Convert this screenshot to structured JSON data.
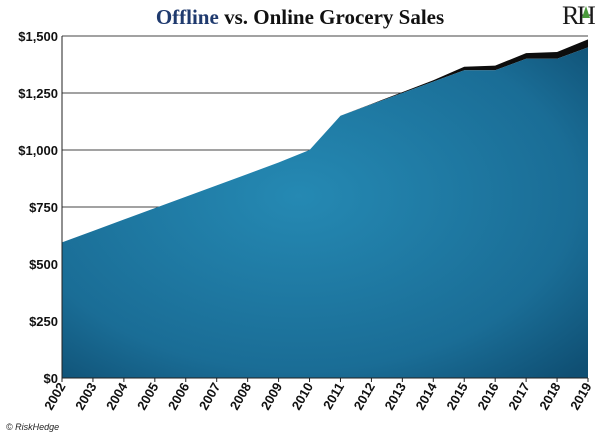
{
  "chart_data": {
    "type": "area",
    "title_part1": "Offline",
    "title_part2": " vs. Online Grocery Sales",
    "x": [
      "2002",
      "2003",
      "2004",
      "2005",
      "2006",
      "2007",
      "2008",
      "2009",
      "2010",
      "2011",
      "2012",
      "2013",
      "2014",
      "2015",
      "2016",
      "2017",
      "2018",
      "2019"
    ],
    "series": [
      {
        "values": [
          595,
          645,
          695,
          745,
          795,
          845,
          895,
          945,
          1000,
          1150,
          1200,
          1250,
          1300,
          1350,
          1350,
          1400,
          1400,
          1450
        ],
        "color": "#1a6d96"
      },
      {
        "values": [
          0,
          0,
          0,
          0,
          0,
          0,
          0,
          0,
          0,
          0,
          2,
          4,
          6,
          15,
          20,
          25,
          30,
          35
        ],
        "color": "#0d0d0d"
      }
    ],
    "ylim": [
      0,
      1500
    ],
    "yticks": [
      "$0",
      "$250",
      "$500",
      "$750",
      "$1,000",
      "$1,250",
      "$1,500"
    ],
    "ytick_values": [
      0,
      250,
      500,
      750,
      1000,
      1250,
      1500
    ],
    "grid": true,
    "stacked": true,
    "title_color_part1": "#1f3a6e",
    "title_color_part2": "#111111"
  },
  "footer": {
    "credit": "© RiskHedge"
  },
  "logo": {
    "text_r": "R",
    "text_h": "H",
    "accent_color": "#4a9a3b"
  }
}
